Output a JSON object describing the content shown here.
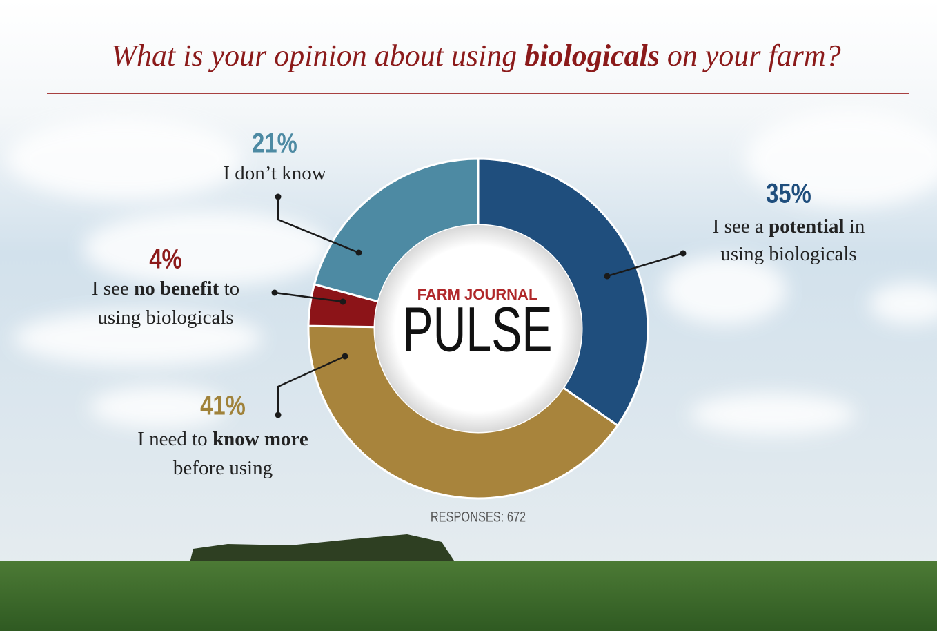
{
  "chart_data": {
    "type": "donut",
    "title": [
      {
        "text": "What is your opinion about using "
      },
      {
        "text": "biologicals",
        "bold": true
      },
      {
        "text": " on your farm?"
      }
    ],
    "categories": [
      [
        [
          {
            "text": "I see a "
          },
          {
            "text": "potential",
            "bold": true
          },
          {
            "text": " in"
          }
        ],
        [
          {
            "text": "using biologicals"
          }
        ]
      ],
      [
        [
          {
            "text": "I need to "
          },
          {
            "text": "know more",
            "bold": true
          }
        ],
        [
          {
            "text": "before using"
          }
        ]
      ],
      [
        [
          {
            "text": "I see "
          },
          {
            "text": "no benefit",
            "bold": true
          },
          {
            "text": " to"
          }
        ],
        [
          {
            "text": "using biologicals"
          }
        ]
      ],
      [
        [
          {
            "text": "I don’t know"
          }
        ]
      ]
    ],
    "values": [
      35,
      41,
      4,
      21
    ],
    "value_labels": [
      "35%",
      "41%",
      "4%",
      "21%"
    ],
    "colors": [
      "#1f4e7d",
      "#a8843c",
      "#8c1418",
      "#4d8aa3"
    ],
    "label_colors": [
      "#1f4e7d",
      "#a0823a",
      "#8c1a1a",
      "#4d8aa3"
    ],
    "logo": {
      "top": "FARM JOURNAL",
      "main": "PULSE"
    },
    "note": "RESPONSES: 672"
  }
}
